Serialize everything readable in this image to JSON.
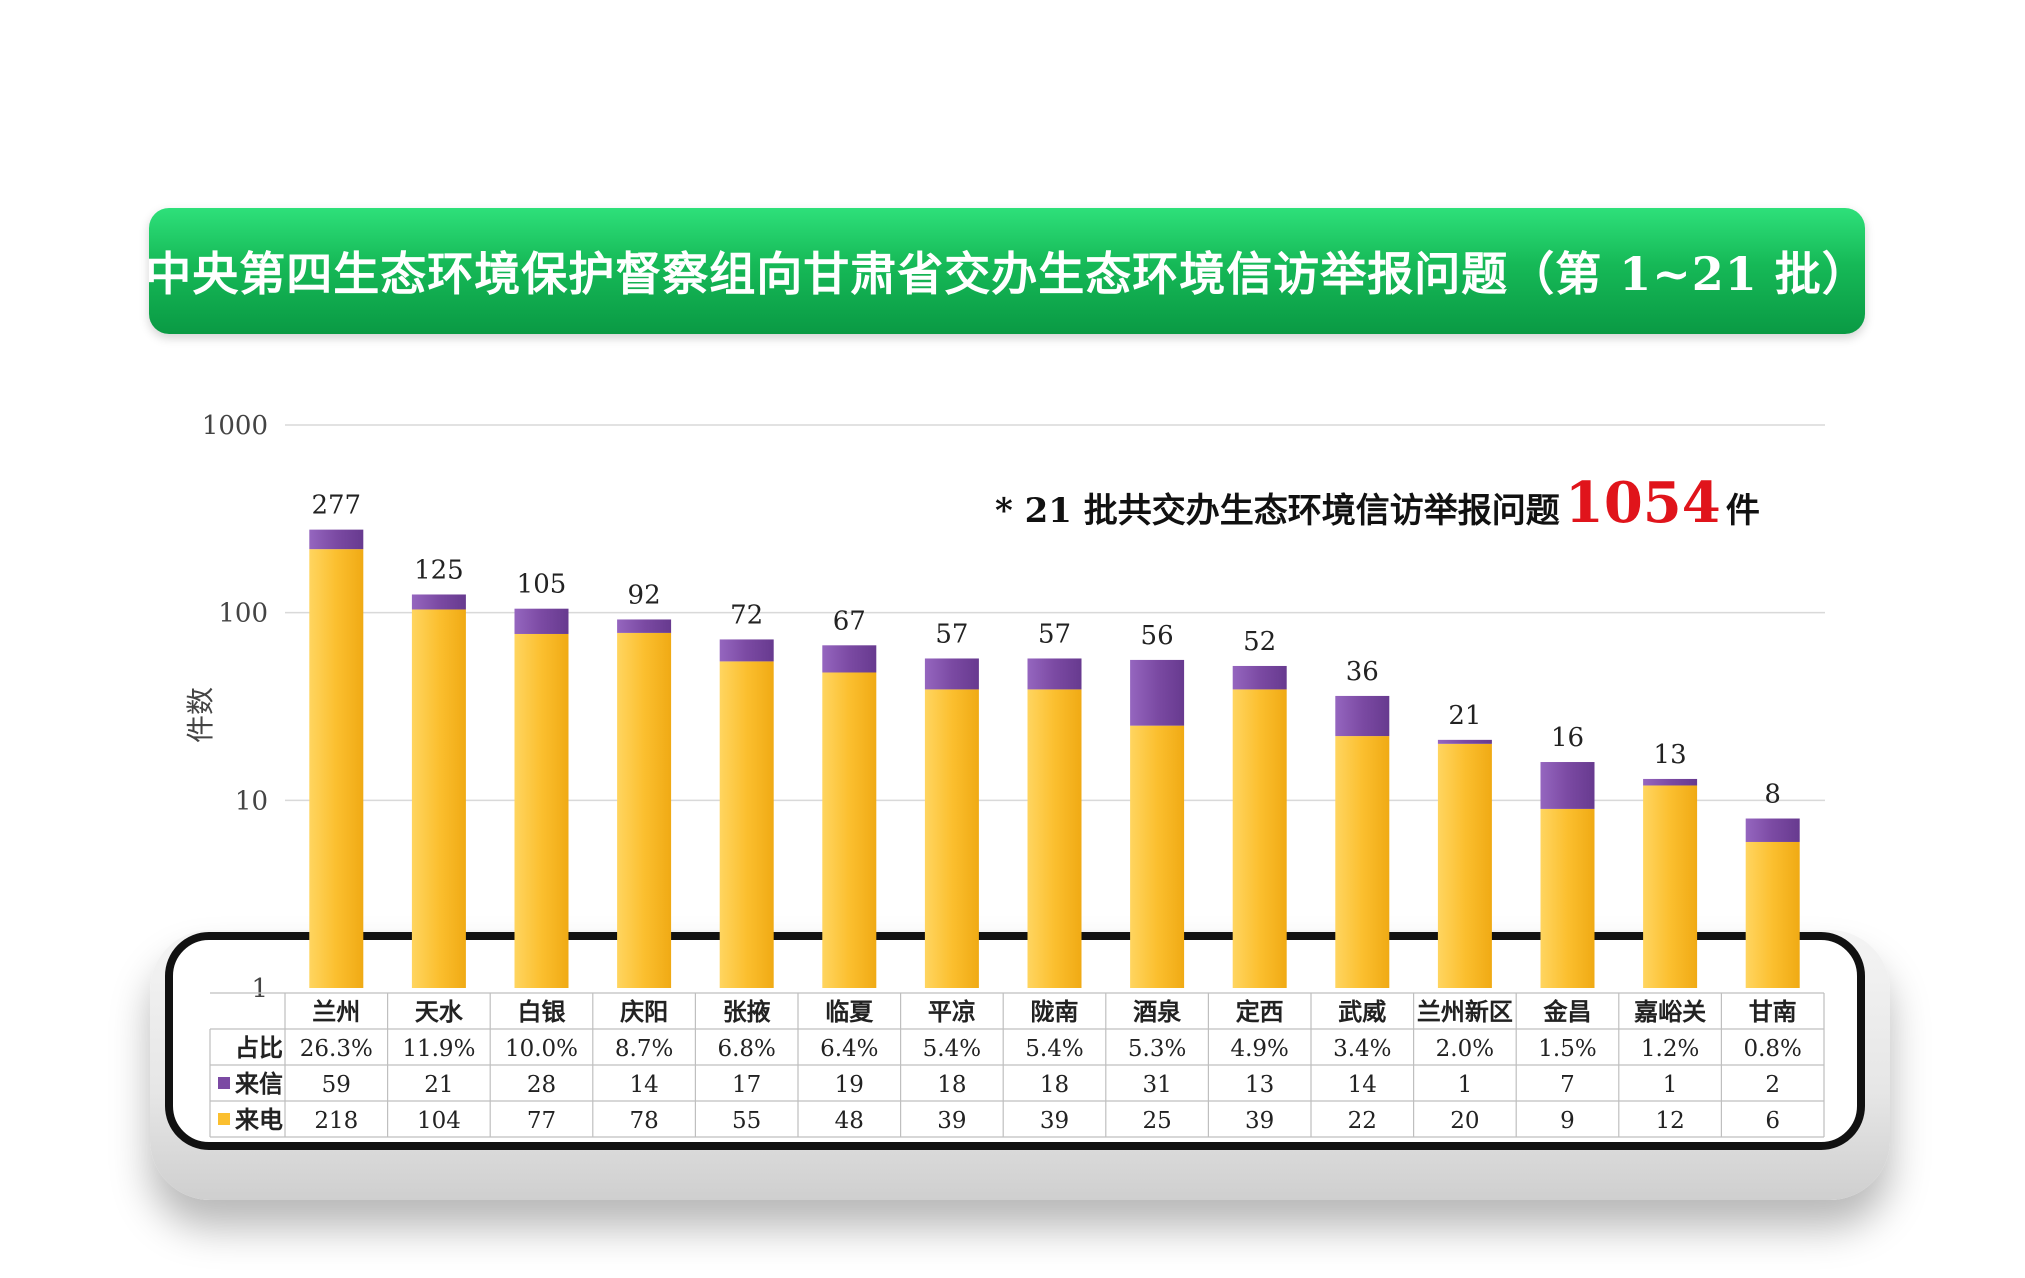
{
  "banner": {
    "title": "中央第四生态环境保护督察组向甘肃省交办生态环境信访举报问题（第 1~21 批）"
  },
  "note": {
    "prefix": "* 21 批共交办生态环境信访举报问题",
    "total": "1054",
    "suffix": "件"
  },
  "colors": {
    "letter": "#7b4aa3",
    "phone": "#fbbf2f",
    "banner": "#16b957",
    "total": "#e0141b"
  },
  "chart_data": {
    "type": "bar",
    "stacked": true,
    "yscale": "log",
    "ylim": [
      1,
      1000
    ],
    "yticks": [
      "1",
      "10",
      "100",
      "1000"
    ],
    "ylabel": "件数",
    "grid": true,
    "categories": [
      "兰州",
      "天水",
      "白银",
      "庆阳",
      "张掖",
      "临夏",
      "平凉",
      "陇南",
      "酒泉",
      "定西",
      "武威",
      "兰州新区",
      "金昌",
      "嘉峪关",
      "甘南"
    ],
    "totals": [
      277,
      125,
      105,
      92,
      72,
      67,
      57,
      57,
      56,
      52,
      36,
      21,
      16,
      13,
      8
    ],
    "share_label": "占比",
    "share": [
      "26.3%",
      "11.9%",
      "10.0%",
      "8.7%",
      "6.8%",
      "6.4%",
      "5.4%",
      "5.4%",
      "5.3%",
      "4.9%",
      "3.4%",
      "2.0%",
      "1.5%",
      "1.2%",
      "0.8%"
    ],
    "series": [
      {
        "name": "来电",
        "values": [
          218,
          104,
          77,
          78,
          55,
          48,
          39,
          39,
          25,
          39,
          22,
          20,
          9,
          12,
          6
        ]
      },
      {
        "name": "来信",
        "values": [
          59,
          21,
          28,
          14,
          17,
          19,
          18,
          18,
          31,
          13,
          14,
          1,
          7,
          1,
          2
        ]
      }
    ]
  }
}
